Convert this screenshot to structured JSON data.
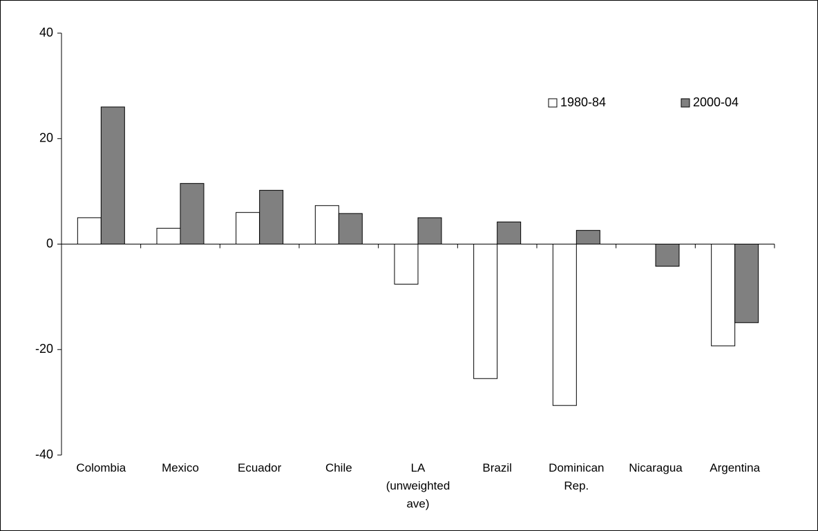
{
  "chart_data": {
    "type": "bar",
    "categories": [
      "Colombia",
      "Mexico",
      "Ecuador",
      "Chile",
      "LA (unweighted ave)",
      "Brazil",
      "Dominican Rep.",
      "Nicaragua",
      "Argentina"
    ],
    "series": [
      {
        "name": "1980-84",
        "color": "#ffffff",
        "values": [
          5.0,
          3.0,
          6.0,
          7.3,
          -7.6,
          -25.5,
          -30.6,
          null,
          -19.3
        ]
      },
      {
        "name": "2000-04",
        "color": "#808080",
        "values": [
          26.0,
          11.5,
          10.2,
          5.8,
          5.0,
          4.2,
          2.6,
          -4.2,
          -14.9
        ]
      }
    ],
    "ylim": [
      -40,
      40
    ],
    "yticks": [
      -40,
      -20,
      0,
      20,
      40
    ],
    "grid": false,
    "legend": "upper right"
  }
}
